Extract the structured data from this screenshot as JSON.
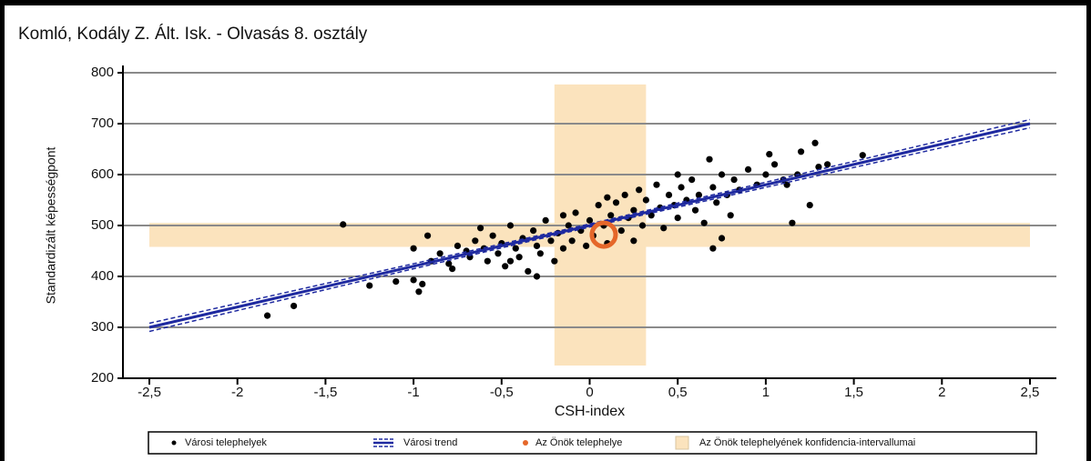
{
  "chart_data": {
    "type": "scatter",
    "title": "Komló, Kodály Z. Ált. Isk. - Olvasás 8. osztály",
    "x_label": "CSH-index",
    "y_label": "Standardizált képességpont",
    "xlim": [
      -2.65,
      2.65
    ],
    "ylim": [
      200,
      800
    ],
    "xticks": [
      {
        "value": -2.5,
        "label": "-2,5"
      },
      -2,
      {
        "value": -1.5,
        "label": "-1,5"
      },
      -1,
      {
        "value": -0.5,
        "label": "-0,5"
      },
      0,
      {
        "value": 0.5,
        "label": "0,5"
      },
      1,
      {
        "value": 1.5,
        "label": "1,5"
      },
      2,
      {
        "value": 2.5,
        "label": "2,5"
      }
    ],
    "yticks": [
      200,
      300,
      400,
      500,
      600,
      700,
      800
    ],
    "grid": true,
    "series": [
      {
        "name": "Városi telephelyek",
        "color": "#000000",
        "x": [
          -1.83,
          -1.68,
          -1.4,
          -1.25,
          -1.1,
          -1.0,
          -0.97,
          -0.95,
          -1.0,
          -0.92,
          1.28,
          1.55,
          1.15,
          1.25,
          1.02,
          0.68,
          0.7,
          0.75,
          1.2,
          1.35,
          0.5,
          -0.9,
          -0.85,
          -0.8,
          -0.78,
          -0.75,
          -0.7,
          -0.68,
          -0.65,
          -0.62,
          -0.6,
          -0.58,
          -0.55,
          -0.52,
          -0.5,
          -0.48,
          -0.45,
          -0.42,
          -0.4,
          -0.38,
          -0.35,
          -0.32,
          -0.3,
          -0.28,
          -0.25,
          -0.22,
          -0.2,
          -0.18,
          -0.15,
          -0.12,
          -0.1,
          -0.08,
          -0.05,
          -0.02,
          0,
          0.02,
          0.05,
          0.08,
          0.1,
          0.12,
          0.15,
          0.18,
          0.2,
          0.22,
          0.25,
          0.28,
          0.3,
          0.32,
          0.35,
          0.38,
          0.4,
          0.42,
          0.45,
          0.48,
          0.5,
          0.52,
          0.55,
          0.58,
          0.6,
          0.62,
          0.65,
          0.7,
          0.72,
          0.75,
          0.78,
          0.8,
          0.82,
          0.85,
          0.9,
          0.95,
          1.0,
          1.05,
          1.1,
          1.12,
          1.18,
          1.3,
          -0.3,
          -0.15,
          0.1,
          0.25,
          -0.45
        ],
        "values": [
          323,
          342,
          502,
          382,
          390,
          393,
          370,
          385,
          455,
          480,
          662,
          638,
          505,
          540,
          640,
          630,
          455,
          475,
          645,
          620,
          600,
          430,
          445,
          425,
          415,
          460,
          450,
          438,
          470,
          495,
          455,
          430,
          480,
          445,
          465,
          420,
          500,
          455,
          438,
          475,
          410,
          490,
          460,
          445,
          510,
          470,
          430,
          485,
          455,
          500,
          470,
          525,
          490,
          460,
          510,
          480,
          540,
          500,
          465,
          520,
          545,
          490,
          560,
          515,
          530,
          570,
          500,
          550,
          520,
          580,
          535,
          495,
          560,
          540,
          515,
          575,
          550,
          590,
          530,
          560,
          505,
          575,
          545,
          600,
          560,
          520,
          590,
          570,
          610,
          580,
          600,
          620,
          590,
          580,
          600,
          615,
          400,
          520,
          555,
          470,
          430
        ]
      },
      {
        "name": "Városi trend",
        "color": "#1f2aa0",
        "x": [
          -2.5,
          2.5
        ],
        "values": [
          300,
          700
        ],
        "ci_x": [
          -2.5,
          0,
          2.5
        ],
        "ci_lower": [
          292,
          497,
          692
        ],
        "ci_upper": [
          308,
          503,
          708
        ]
      },
      {
        "name": "Az Önök telephelye",
        "color": "#e5672a",
        "x": [
          0.08
        ],
        "values": [
          482
        ]
      }
    ],
    "confidence": {
      "name": "Az Önök telephelyének konfidencia-intervallumai",
      "color": "#fbe3bd",
      "x_interval": [
        -0.2,
        0.32
      ],
      "x_interval_y_range": [
        225,
        777
      ],
      "y_interval": [
        458,
        505
      ],
      "y_interval_x_range": [
        -2.5,
        2.5
      ]
    }
  }
}
